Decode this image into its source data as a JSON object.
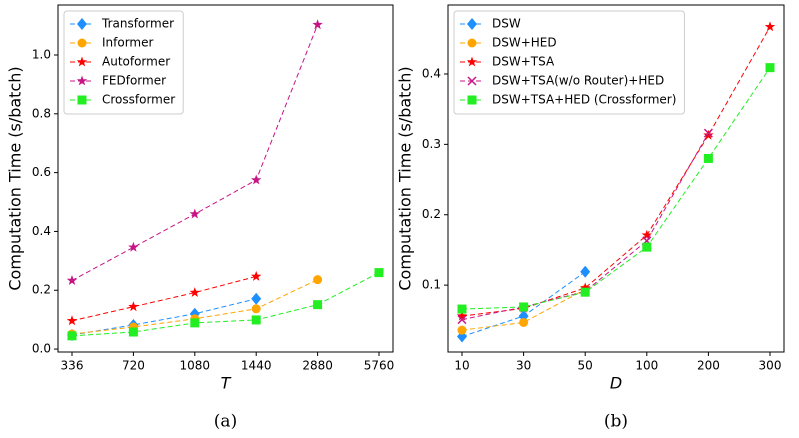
{
  "chart_data": [
    {
      "type": "line",
      "caption": "(a)",
      "ylabel": "Computation Time (s/batch)",
      "xlabel": "T",
      "categories": [
        "336",
        "720",
        "1080",
        "1440",
        "2880",
        "5760"
      ],
      "ylim": [
        -0.01,
        1.17
      ],
      "yticks": [
        0.0,
        0.2,
        0.4,
        0.6,
        0.8,
        1.0
      ],
      "legend": "upper-left",
      "series": [
        {
          "name": "Transformer",
          "color": "#1e8fff",
          "marker": "diamond",
          "values": [
            0.048,
            0.082,
            0.12,
            0.171,
            null,
            null
          ]
        },
        {
          "name": "Informer",
          "color": "#ffa500",
          "marker": "circle",
          "values": [
            0.051,
            0.075,
            0.103,
            0.137,
            0.236,
            null
          ]
        },
        {
          "name": "Autoformer",
          "color": "#ff0000",
          "marker": "star",
          "values": [
            0.096,
            0.144,
            0.192,
            0.247,
            null,
            null
          ]
        },
        {
          "name": "FEDformer",
          "color": "#c71585",
          "marker": "star",
          "values": [
            0.233,
            0.346,
            0.459,
            0.575,
            1.103,
            null
          ]
        },
        {
          "name": "Crossformer",
          "color": "#22ee22",
          "marker": "square",
          "values": [
            0.045,
            0.058,
            0.089,
            0.099,
            0.151,
            0.26
          ]
        }
      ]
    },
    {
      "type": "line",
      "caption": "(b)",
      "ylabel": "Computation Time (s/batch)",
      "xlabel": "D",
      "categories": [
        "10",
        "30",
        "50",
        "100",
        "200",
        "300"
      ],
      "ylim": [
        0.005,
        0.498
      ],
      "yticks": [
        0.1,
        0.2,
        0.3,
        0.4
      ],
      "legend": "upper-left",
      "series": [
        {
          "name": "DSW",
          "color": "#1e8fff",
          "marker": "diamond",
          "values": [
            0.027,
            0.056,
            0.119,
            null,
            null,
            null
          ]
        },
        {
          "name": "DSW+HED",
          "color": "#ffa500",
          "marker": "circle",
          "values": [
            0.036,
            0.047,
            0.094,
            null,
            null,
            null
          ]
        },
        {
          "name": "DSW+TSA",
          "color": "#ff0000",
          "marker": "star",
          "values": [
            0.056,
            0.067,
            0.096,
            0.171,
            0.313,
            0.467
          ]
        },
        {
          "name": "DSW+TSA(w/o Router)+HED",
          "color": "#c71585",
          "marker": "x",
          "values": [
            0.051,
            0.069,
            0.091,
            0.163,
            0.316,
            null
          ]
        },
        {
          "name": "DSW+TSA+HED (Crossformer)",
          "color": "#22ee22",
          "marker": "square",
          "values": [
            0.066,
            0.069,
            0.09,
            0.154,
            0.28,
            0.409
          ]
        }
      ]
    }
  ]
}
